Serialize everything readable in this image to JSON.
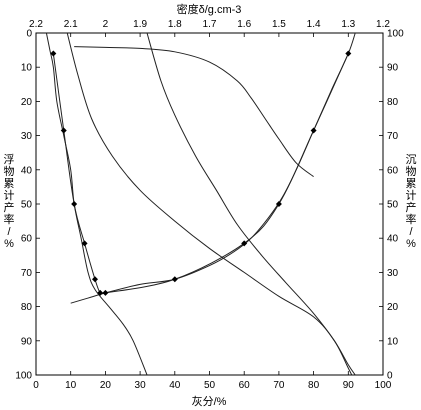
{
  "chart_data": {
    "type": "line",
    "title": "",
    "xlabel": "灰分/%",
    "ylabel_left": "浮物累计产率/%",
    "ylabel_right": "沉物累计产率/%",
    "xlabel_top": "密度δ/g.cm-3",
    "bottom_axis": {
      "range": [
        0,
        100
      ],
      "ticks": [
        0,
        10,
        20,
        30,
        40,
        50,
        60,
        70,
        80,
        90,
        100
      ]
    },
    "left_axis": {
      "range": [
        0,
        100
      ],
      "inverted": true,
      "ticks": [
        0,
        10,
        20,
        30,
        40,
        50,
        60,
        70,
        80,
        90,
        100
      ]
    },
    "right_axis": {
      "range": [
        0,
        100
      ],
      "ticks": [
        0,
        10,
        20,
        30,
        40,
        50,
        60,
        70,
        80,
        90,
        100
      ]
    },
    "top_axis": {
      "range": [
        2.2,
        1.2
      ],
      "ticks": [
        "2.2",
        "2.1",
        "2",
        "1.9",
        "1.8",
        "1.7",
        "1.6",
        "1.5",
        "1.4",
        "1.3",
        "1.2"
      ]
    },
    "grid": true,
    "series": [
      {
        "points": [
          [
            3,
            0
          ],
          [
            4,
            5
          ],
          [
            5,
            10
          ],
          [
            6,
            20
          ],
          [
            8,
            30
          ],
          [
            10,
            40
          ],
          [
            11,
            50
          ],
          [
            13,
            60
          ],
          [
            15,
            70
          ],
          [
            17,
            75
          ],
          [
            21,
            80
          ],
          [
            25,
            85
          ],
          [
            28,
            90
          ],
          [
            32,
            100
          ]
        ]
      },
      {
        "markers": true,
        "points": [
          [
            5,
            6
          ],
          [
            8,
            28.5
          ],
          [
            11,
            50
          ],
          [
            14,
            61.5
          ],
          [
            17,
            72
          ],
          [
            18.5,
            76
          ],
          [
            20,
            76
          ],
          [
            40,
            72
          ],
          [
            60,
            61.5
          ],
          [
            70,
            50
          ],
          [
            80,
            28.5
          ],
          [
            90,
            6
          ]
        ]
      },
      {
        "points": [
          [
            10,
            79
          ],
          [
            15,
            77.5
          ],
          [
            20,
            76
          ],
          [
            30,
            73.5
          ],
          [
            40,
            72
          ],
          [
            50,
            68
          ],
          [
            57,
            64
          ],
          [
            62,
            60
          ],
          [
            67,
            54
          ],
          [
            71,
            48
          ],
          [
            75,
            40
          ],
          [
            80,
            28.5
          ],
          [
            85,
            17
          ],
          [
            90,
            6
          ],
          [
            92,
            0
          ]
        ]
      },
      {
        "points": [
          [
            9,
            0
          ],
          [
            12,
            12
          ],
          [
            16,
            25
          ],
          [
            22,
            36
          ],
          [
            30,
            46
          ],
          [
            40,
            55
          ],
          [
            50,
            63
          ],
          [
            60,
            70
          ],
          [
            70,
            77
          ],
          [
            80,
            83
          ],
          [
            86,
            90
          ],
          [
            90,
            98
          ],
          [
            91,
            100
          ]
        ]
      },
      {
        "points": [
          [
            32,
            0
          ],
          [
            36,
            14
          ],
          [
            40,
            24
          ],
          [
            46,
            36
          ],
          [
            52,
            46
          ],
          [
            58,
            56
          ],
          [
            65,
            65
          ],
          [
            72,
            73
          ],
          [
            80,
            82
          ],
          [
            86,
            90
          ],
          [
            90,
            97
          ],
          [
            92,
            100
          ]
        ]
      },
      {
        "points": [
          [
            11,
            4
          ],
          [
            20,
            4.2
          ],
          [
            30,
            4.5
          ],
          [
            40,
            5.5
          ],
          [
            50,
            8.5
          ],
          [
            58,
            14
          ],
          [
            62,
            19
          ],
          [
            66,
            25
          ],
          [
            70,
            31
          ],
          [
            75,
            38
          ],
          [
            80,
            42
          ]
        ]
      }
    ]
  }
}
